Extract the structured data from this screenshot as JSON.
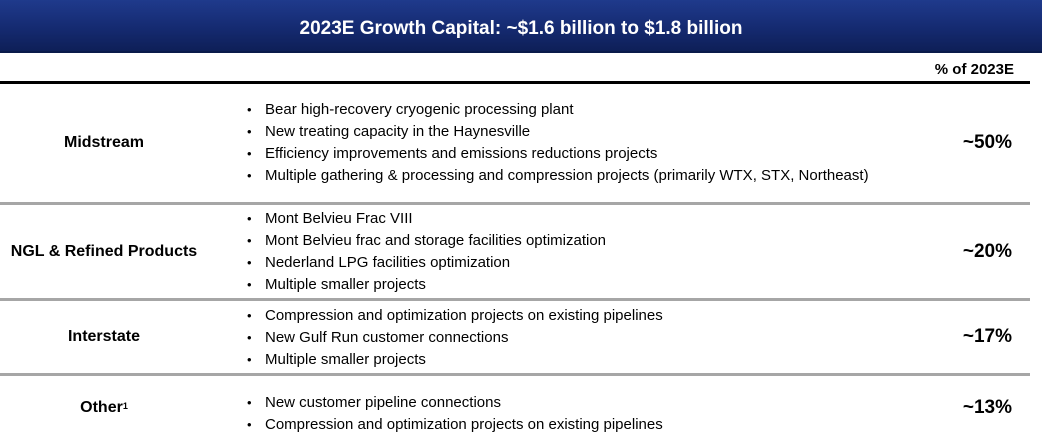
{
  "banner": {
    "title": "2023E Growth Capital: ~$1.6 billion to $1.8 billion"
  },
  "column_header": "% of 2023E",
  "rows": [
    {
      "category": "Midstream",
      "items": [
        "Bear high-recovery cryogenic processing plant",
        "New treating capacity in the Haynesville",
        "Efficiency improvements and emissions reductions projects",
        "Multiple gathering & processing and compression projects (primarily WTX, STX, Northeast)"
      ],
      "percent": "~50%"
    },
    {
      "category": "NGL & Refined Products",
      "items": [
        "Mont Belvieu Frac VIII",
        "Mont Belvieu frac and storage facilities optimization",
        "Nederland LPG facilities optimization",
        "Multiple smaller projects"
      ],
      "percent": "~20%"
    },
    {
      "category": "Interstate",
      "items": [
        "Compression and optimization projects on existing pipelines",
        "New Gulf Run customer connections",
        "Multiple smaller projects"
      ],
      "percent": "~17%"
    },
    {
      "category": "Other",
      "footnote": "1",
      "items": [
        "New customer pipeline connections",
        "Compression and optimization projects on existing pipelines"
      ],
      "percent": "~13%"
    }
  ]
}
